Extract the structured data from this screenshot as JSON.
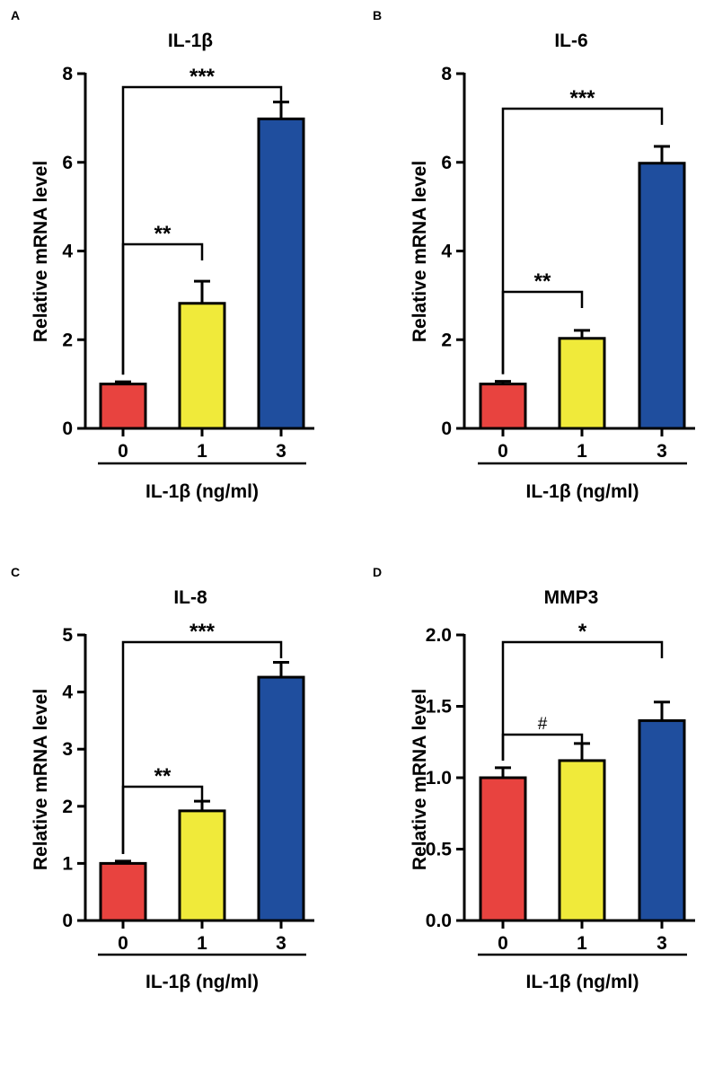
{
  "chart_data": [
    {
      "type": "bar",
      "panel": "A",
      "title": "IL-1β",
      "ylabel": "Relative mRNA level",
      "xlabel": "IL-1β (ng/ml)",
      "categories": [
        "0",
        "1",
        "3"
      ],
      "values": [
        1.0,
        2.82,
        6.98
      ],
      "errors": [
        0.05,
        0.5,
        0.38
      ],
      "colors": [
        "#e8433f",
        "#f0ea3a",
        "#1f4e9e"
      ],
      "ylim": [
        0,
        8
      ],
      "yticks": [
        "0",
        "2",
        "4",
        "6",
        "8"
      ],
      "comparisons": [
        {
          "from": 0,
          "to": 1,
          "label": "**"
        },
        {
          "from": 0,
          "to": 2,
          "label": "***"
        }
      ]
    },
    {
      "type": "bar",
      "panel": "B",
      "title": "IL-6",
      "ylabel": "Relative mRNA level",
      "xlabel": "IL-1β (ng/ml)",
      "categories": [
        "0",
        "1",
        "3"
      ],
      "values": [
        1.0,
        2.03,
        5.98
      ],
      "errors": [
        0.06,
        0.18,
        0.38
      ],
      "colors": [
        "#e8433f",
        "#f0ea3a",
        "#1f4e9e"
      ],
      "ylim": [
        0,
        8
      ],
      "yticks": [
        "0",
        "2",
        "4",
        "6",
        "8"
      ],
      "comparisons": [
        {
          "from": 0,
          "to": 1,
          "label": "**"
        },
        {
          "from": 0,
          "to": 2,
          "label": "***"
        }
      ]
    },
    {
      "type": "bar",
      "panel": "C",
      "title": "IL-8",
      "ylabel": "Relative mRNA level",
      "xlabel": "IL-1β (ng/ml)",
      "categories": [
        "0",
        "1",
        "3"
      ],
      "values": [
        1.0,
        1.92,
        4.26
      ],
      "errors": [
        0.04,
        0.17,
        0.26
      ],
      "colors": [
        "#e8433f",
        "#f0ea3a",
        "#1f4e9e"
      ],
      "ylim": [
        0,
        5
      ],
      "yticks": [
        "0",
        "1",
        "2",
        "3",
        "4",
        "5"
      ],
      "comparisons": [
        {
          "from": 0,
          "to": 1,
          "label": "**"
        },
        {
          "from": 0,
          "to": 2,
          "label": "***"
        }
      ]
    },
    {
      "type": "bar",
      "panel": "D",
      "title": "MMP3",
      "ylabel": "Relative mRNA level",
      "xlabel": "IL-1β (ng/ml)",
      "categories": [
        "0",
        "1",
        "3"
      ],
      "values": [
        1.0,
        1.12,
        1.4
      ],
      "errors": [
        0.07,
        0.12,
        0.13
      ],
      "colors": [
        "#e8433f",
        "#f0ea3a",
        "#1f4e9e"
      ],
      "ylim": [
        0,
        2.0
      ],
      "yticks": [
        "0.0",
        "0.5",
        "1.0",
        "1.5",
        "2.0"
      ],
      "comparisons": [
        {
          "from": 0,
          "to": 1,
          "label": "#"
        },
        {
          "from": 0,
          "to": 2,
          "label": "*"
        }
      ]
    }
  ]
}
